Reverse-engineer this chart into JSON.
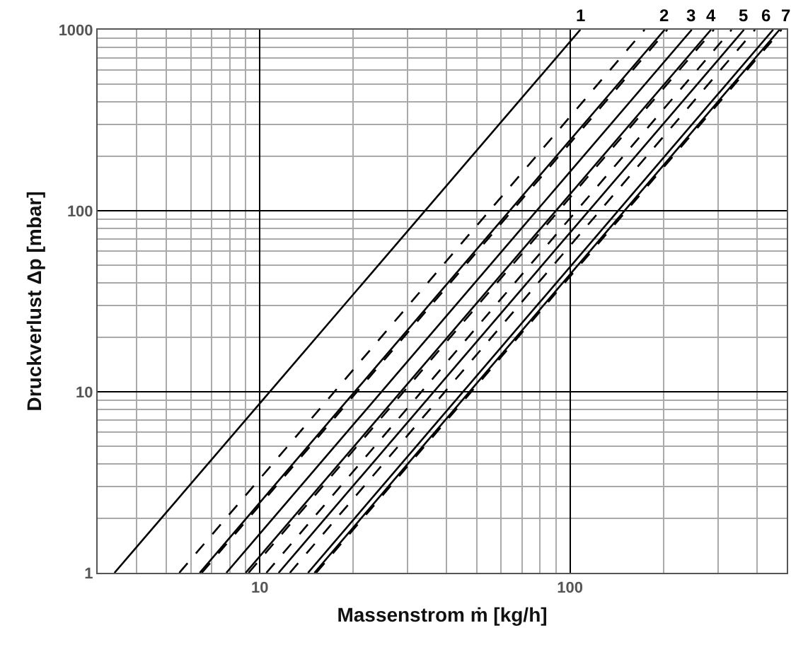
{
  "chart_data": {
    "type": "line",
    "xlabel": "Massenstrom ṁ [kg/h]",
    "ylabel": "Druckverlust Δp [mbar]",
    "log": "xy",
    "grid": true,
    "legend": false,
    "marker": "none",
    "xlim": [
      3,
      500
    ],
    "ylim": [
      1,
      1000
    ],
    "xticks": [
      {
        "value": 3,
        "label": null
      },
      {
        "value": 4,
        "label": null
      },
      {
        "value": 5,
        "label": null
      },
      {
        "value": 6,
        "label": null
      },
      {
        "value": 7,
        "label": null
      },
      {
        "value": 8,
        "label": null
      },
      {
        "value": 9,
        "label": null
      },
      10,
      {
        "value": 20,
        "label": null
      },
      {
        "value": 30,
        "label": null
      },
      {
        "value": 40,
        "label": null
      },
      {
        "value": 50,
        "label": null
      },
      {
        "value": 60,
        "label": null
      },
      {
        "value": 70,
        "label": null
      },
      {
        "value": 80,
        "label": null
      },
      {
        "value": 90,
        "label": null
      },
      100,
      {
        "value": 200,
        "label": null
      },
      {
        "value": 300,
        "label": null
      },
      {
        "value": 400,
        "label": null
      },
      {
        "value": 500,
        "label": null
      }
    ],
    "yticks": [
      1,
      {
        "value": 2,
        "label": null
      },
      {
        "value": 3,
        "label": null
      },
      {
        "value": 4,
        "label": null
      },
      {
        "value": 5,
        "label": null
      },
      {
        "value": 6,
        "label": null
      },
      {
        "value": 7,
        "label": null
      },
      {
        "value": 8,
        "label": null
      },
      {
        "value": 9,
        "label": null
      },
      10,
      {
        "value": 20,
        "label": null
      },
      {
        "value": 30,
        "label": null
      },
      {
        "value": 40,
        "label": null
      },
      {
        "value": 50,
        "label": null
      },
      {
        "value": 60,
        "label": null
      },
      {
        "value": 70,
        "label": null
      },
      {
        "value": 80,
        "label": null
      },
      {
        "value": 90,
        "label": null
      },
      100,
      {
        "value": 200,
        "label": null
      },
      {
        "value": 300,
        "label": null
      },
      {
        "value": 400,
        "label": null
      },
      {
        "value": 500,
        "label": null
      },
      {
        "value": 600,
        "label": null
      },
      {
        "value": 700,
        "label": null
      },
      {
        "value": 800,
        "label": null
      },
      {
        "value": 900,
        "label": null
      },
      1000
    ],
    "series": [
      {
        "name": "1",
        "color": "#000000",
        "line_style": "solid",
        "x": [
          3.4,
          108
        ],
        "values": [
          1,
          1000
        ]
      },
      {
        "name": "2",
        "color": "#000000",
        "line_style": "solid",
        "x": [
          6.4,
          202
        ],
        "values": [
          1,
          1000
        ]
      },
      {
        "name": "3",
        "color": "#000000",
        "line_style": "solid",
        "x": [
          7.8,
          247
        ],
        "values": [
          1,
          1000
        ]
      },
      {
        "name": "4",
        "color": "#000000",
        "line_style": "solid",
        "x": [
          9.0,
          285
        ],
        "values": [
          1,
          1000
        ]
      },
      {
        "name": "5",
        "color": "#000000",
        "line_style": "solid",
        "x": [
          11.5,
          364
        ],
        "values": [
          1,
          1000
        ]
      },
      {
        "name": "6",
        "color": "#000000",
        "line_style": "solid",
        "x": [
          14.3,
          452
        ],
        "values": [
          1,
          1000
        ]
      },
      {
        "name": "7",
        "color": "#000000",
        "line_style": "solid",
        "x": [
          15.0,
          474
        ],
        "values": [
          1,
          1000
        ]
      },
      {
        "color": "#000000",
        "line_style": "dashed",
        "x": [
          5.5,
          174
        ],
        "values": [
          1,
          1000
        ]
      },
      {
        "color": "#000000",
        "line_style": "dashed",
        "x": [
          6.5,
          206
        ],
        "values": [
          1,
          1000
        ]
      },
      {
        "color": "#000000",
        "line_style": "dashed",
        "x": [
          9.2,
          291
        ],
        "values": [
          1,
          1000
        ]
      },
      {
        "color": "#000000",
        "line_style": "dashed",
        "x": [
          10.5,
          332
        ],
        "values": [
          1,
          1000
        ]
      },
      {
        "color": "#000000",
        "line_style": "dashed",
        "x": [
          12.5,
          395
        ],
        "values": [
          1,
          1000
        ]
      },
      {
        "color": "#000000",
        "line_style": "dashed",
        "x": [
          15.2,
          481
        ],
        "values": [
          1,
          1000
        ]
      }
    ]
  }
}
